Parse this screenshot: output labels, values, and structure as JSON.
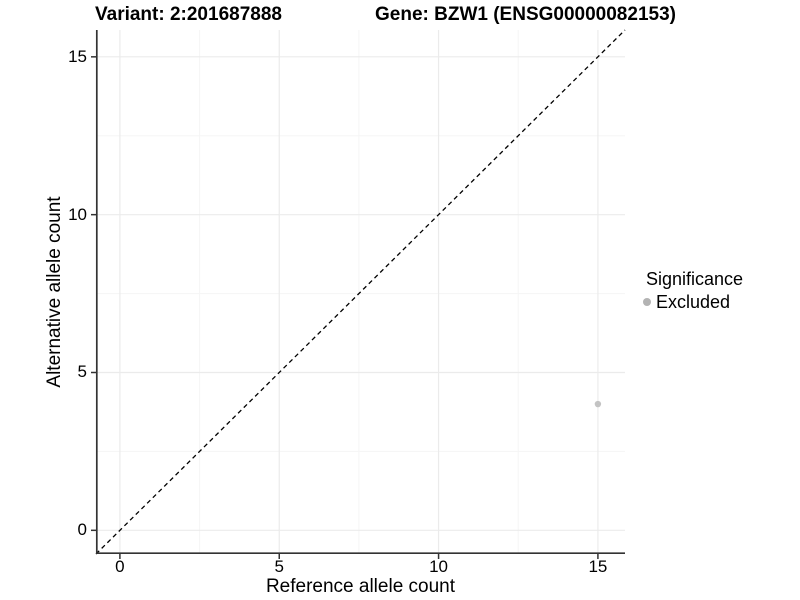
{
  "figure": {
    "variant_title": "Variant: 2:201687888",
    "gene_title": "Gene: BZW1 (ENSG00000082153)"
  },
  "legend": {
    "title": "Significance",
    "items": [
      {
        "label": "Excluded",
        "color": "#b3b3b3"
      }
    ]
  },
  "chart_data": {
    "type": "scatter",
    "title": "Variant: 2:201687888 | Gene: BZW1 (ENSG00000082153)",
    "xlabel": "Reference allele count",
    "ylabel": "Alternative allele count",
    "xlim": [
      -0.75,
      15.85
    ],
    "ylim": [
      -0.75,
      15.85
    ],
    "x_ticks": [
      0,
      5,
      10,
      15
    ],
    "y_ticks": [
      0,
      5,
      10,
      15
    ],
    "x_minor_ticks": [
      2.5,
      7.5,
      12.5
    ],
    "y_minor_ticks": [
      2.5,
      7.5,
      12.5
    ],
    "grid": "major+minor",
    "legend_position": "right",
    "series": [
      {
        "name": "Excluded",
        "color": "#c3c3c3",
        "points": [
          {
            "x": 15,
            "y": 4
          }
        ]
      }
    ],
    "reference_line": {
      "type": "identity y=x",
      "style": "dashed",
      "color": "#000000"
    },
    "style": {
      "background": "#ffffff",
      "grid_major_color": "#ebebeb",
      "grid_minor_color": "#f5f5f5",
      "axis_color": "#333333",
      "text_color": "#000000"
    }
  }
}
